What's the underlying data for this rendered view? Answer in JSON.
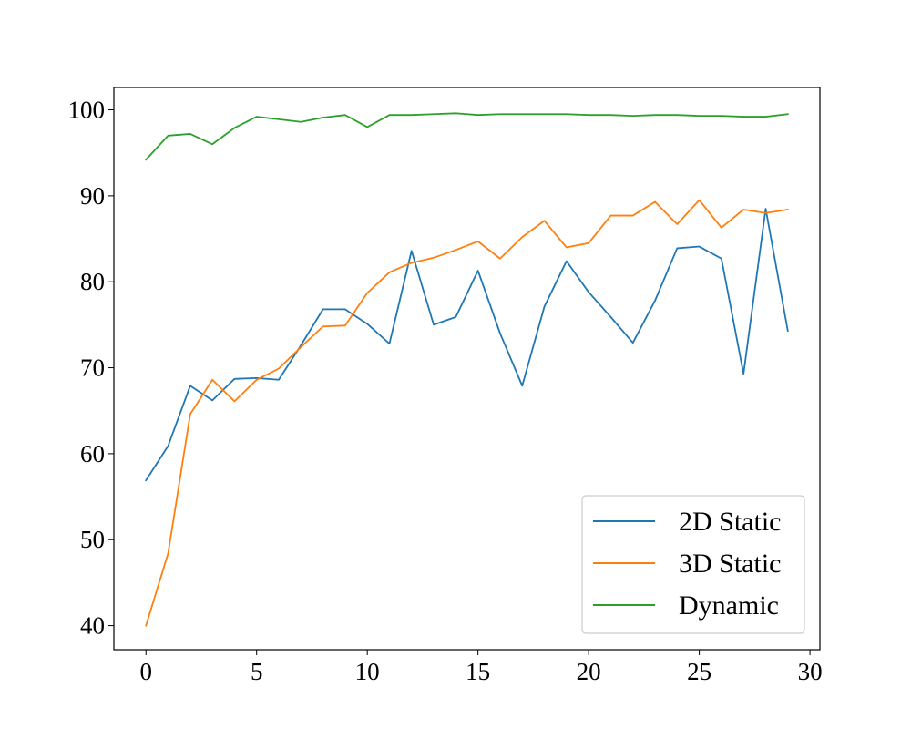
{
  "chart_data": {
    "type": "line",
    "title": "",
    "xlabel": "",
    "ylabel": "",
    "xlim": [
      -1.45,
      30.45
    ],
    "ylim": [
      37.2,
      102.6
    ],
    "xticks": [
      0,
      5,
      10,
      15,
      20,
      25,
      30
    ],
    "yticks": [
      40,
      50,
      60,
      70,
      80,
      90,
      100
    ],
    "x": [
      0,
      1,
      2,
      3,
      4,
      5,
      6,
      7,
      8,
      9,
      10,
      11,
      12,
      13,
      14,
      15,
      16,
      17,
      18,
      19,
      20,
      21,
      22,
      23,
      24,
      25,
      26,
      27,
      28,
      29
    ],
    "legend_position": "lower-right",
    "grid": false,
    "series": [
      {
        "name": "2D Static",
        "color": "#1f77b4",
        "values": [
          56.9,
          60.9,
          67.9,
          66.2,
          68.7,
          68.8,
          68.6,
          72.6,
          76.8,
          76.8,
          75.1,
          72.8,
          83.6,
          75.0,
          75.9,
          81.3,
          74.0,
          67.9,
          77.1,
          82.4,
          78.8,
          75.9,
          72.9,
          77.8,
          83.9,
          84.1,
          82.7,
          69.3,
          88.5,
          74.3
        ]
      },
      {
        "name": "3D Static",
        "color": "#ff7f0e",
        "values": [
          40.0,
          48.4,
          64.6,
          68.6,
          66.1,
          68.6,
          69.9,
          72.4,
          74.8,
          74.9,
          78.7,
          81.1,
          82.2,
          82.8,
          83.7,
          84.7,
          82.7,
          85.2,
          87.1,
          84.0,
          84.5,
          87.7,
          87.7,
          89.3,
          86.7,
          89.5,
          86.3,
          88.4,
          88.0,
          88.4
        ]
      },
      {
        "name": "Dynamic",
        "color": "#2ca02c",
        "values": [
          94.2,
          97.0,
          97.2,
          96.0,
          97.9,
          99.2,
          98.9,
          98.6,
          99.1,
          99.4,
          98.0,
          99.4,
          99.4,
          99.5,
          99.6,
          99.4,
          99.5,
          99.5,
          99.5,
          99.5,
          99.4,
          99.4,
          99.3,
          99.4,
          99.4,
          99.3,
          99.3,
          99.2,
          99.2,
          99.5
        ]
      }
    ]
  }
}
